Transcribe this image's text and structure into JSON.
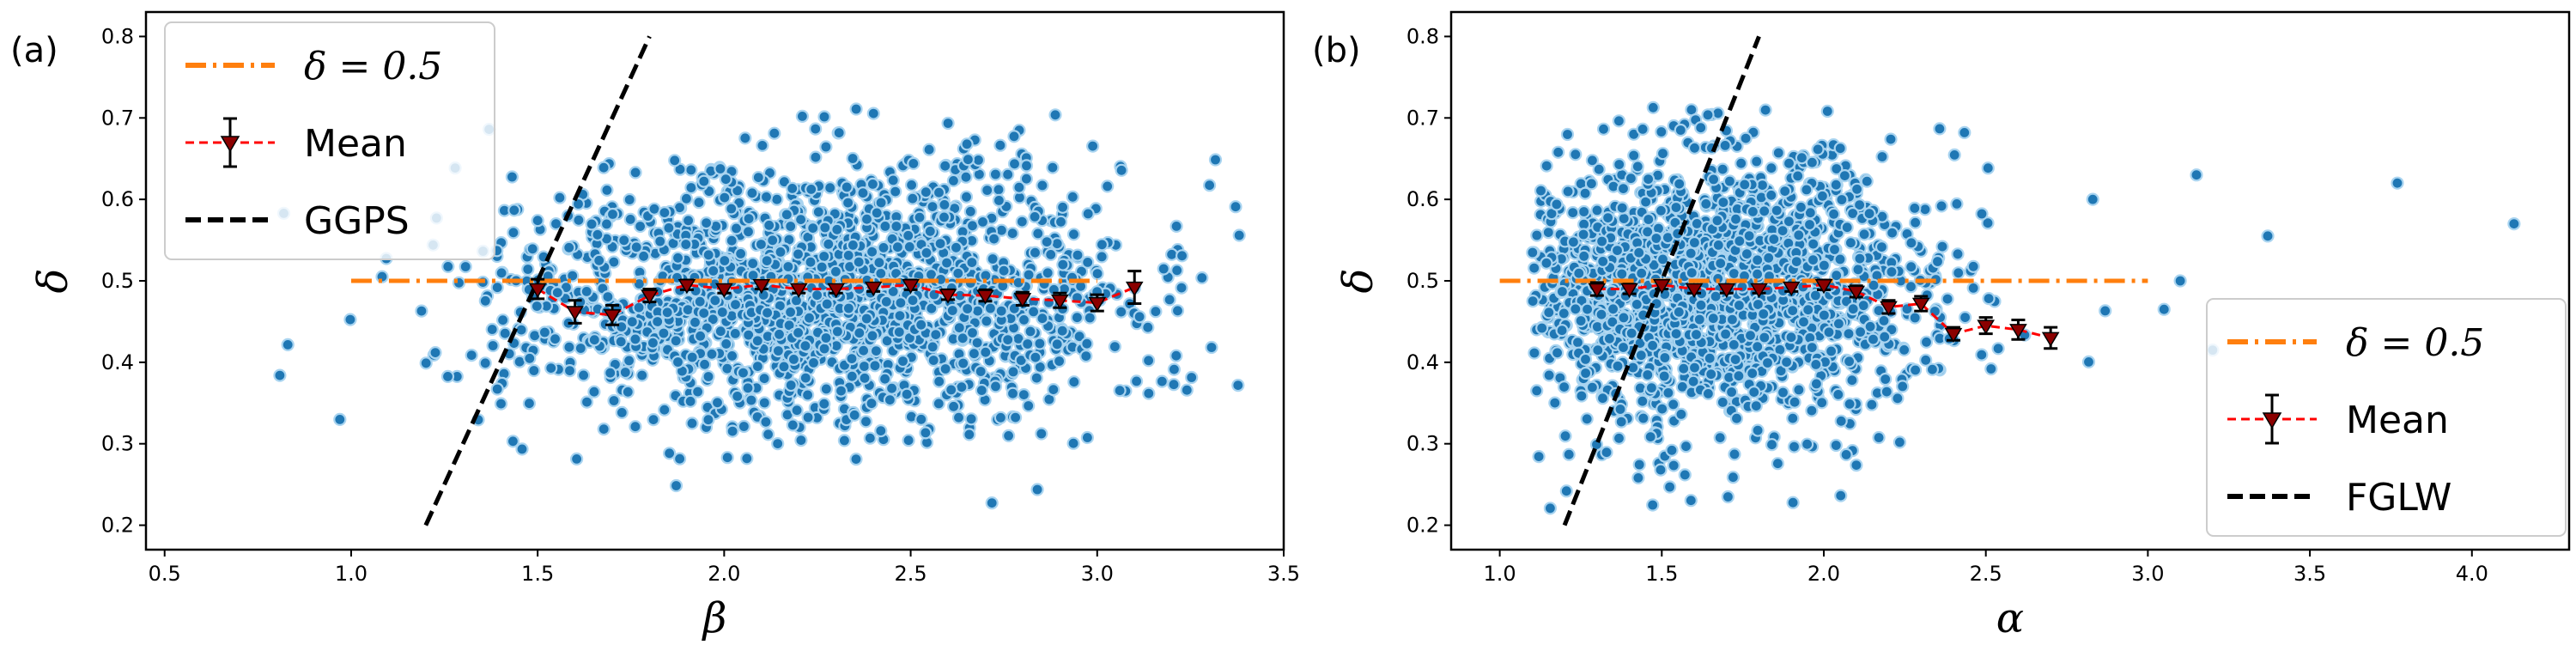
{
  "colors": {
    "scatter_fill": "#1f77b4",
    "scatter_edge": "#a9d4f0",
    "reference_line": "#ff7f0e",
    "mean_line": "#ff0000",
    "mean_marker": "#8b0000",
    "fit_line": "#000000",
    "axis": "#000000"
  },
  "chart_data": [
    {
      "type": "scatter",
      "panel_label": "(a)",
      "xlabel": "β",
      "ylabel": "δ",
      "xlim": [
        0.45,
        3.5
      ],
      "ylim": [
        0.17,
        0.83
      ],
      "x_ticks": [
        0.5,
        1.0,
        1.5,
        2.0,
        2.5,
        3.0,
        3.5
      ],
      "x_tick_labels": [
        "0.5",
        "1.0",
        "1.5",
        "2.0",
        "2.5",
        "3.0",
        "3.5"
      ],
      "y_ticks": [
        0.2,
        0.3,
        0.4,
        0.5,
        0.6,
        0.7,
        0.8
      ],
      "y_tick_labels": [
        "0.2",
        "0.3",
        "0.4",
        "0.5",
        "0.6",
        "0.7",
        "0.8"
      ],
      "legend": {
        "position": "top-left",
        "entries": [
          "δ = 0.5",
          "Mean",
          "GGPS"
        ]
      },
      "cloud": {
        "n_points": 1800,
        "x_center": 2.25,
        "x_spread": 0.42,
        "x_range": [
          0.6,
          3.4
        ],
        "y_center": 0.48,
        "y_spread": 0.08,
        "y_range": [
          0.21,
          0.72
        ],
        "seed": 17
      },
      "reference_line": {
        "name": "δ = 0.5",
        "x": [
          1.0,
          3.0
        ],
        "y": [
          0.5,
          0.5
        ]
      },
      "fit_line": {
        "name": "GGPS",
        "x": [
          1.2,
          1.8
        ],
        "y": [
          0.2,
          0.8
        ]
      },
      "mean_series": {
        "name": "Mean",
        "x": [
          1.5,
          1.6,
          1.7,
          1.8,
          1.9,
          2.0,
          2.1,
          2.2,
          2.3,
          2.4,
          2.5,
          2.6,
          2.7,
          2.8,
          2.9,
          3.0,
          3.1
        ],
        "y": [
          0.49,
          0.462,
          0.458,
          0.482,
          0.495,
          0.49,
          0.495,
          0.49,
          0.49,
          0.492,
          0.495,
          0.483,
          0.482,
          0.478,
          0.476,
          0.473,
          0.492
        ],
        "err": [
          0.012,
          0.014,
          0.012,
          0.008,
          0.006,
          0.005,
          0.005,
          0.005,
          0.005,
          0.005,
          0.006,
          0.006,
          0.007,
          0.008,
          0.009,
          0.01,
          0.02
        ]
      }
    },
    {
      "type": "scatter",
      "panel_label": "(b)",
      "xlabel": "α",
      "ylabel": "δ",
      "xlim": [
        0.85,
        4.3
      ],
      "ylim": [
        0.17,
        0.83
      ],
      "x_ticks": [
        1.0,
        1.5,
        2.0,
        2.5,
        3.0,
        3.5,
        4.0
      ],
      "x_tick_labels": [
        "1.0",
        "1.5",
        "2.0",
        "2.5",
        "3.0",
        "3.5",
        "4.0"
      ],
      "y_ticks": [
        0.2,
        0.3,
        0.4,
        0.5,
        0.6,
        0.7,
        0.8
      ],
      "y_tick_labels": [
        "0.2",
        "0.3",
        "0.4",
        "0.5",
        "0.6",
        "0.7",
        "0.8"
      ],
      "legend": {
        "position": "bottom-right",
        "entries": [
          "δ = 0.5",
          "Mean",
          "FGLW"
        ]
      },
      "cloud": {
        "n_points": 1800,
        "x_center": 1.65,
        "x_spread": 0.33,
        "x_range": [
          1.1,
          3.1
        ],
        "y_center": 0.49,
        "y_spread": 0.085,
        "y_range": [
          0.21,
          0.72
        ],
        "seed": 29
      },
      "reference_line": {
        "name": "δ = 0.5",
        "x": [
          1.0,
          3.0
        ],
        "y": [
          0.5,
          0.5
        ]
      },
      "fit_line": {
        "name": "FGLW",
        "x": [
          1.2,
          1.8
        ],
        "y": [
          0.2,
          0.8
        ]
      },
      "mean_series": {
        "name": "Mean",
        "x": [
          1.3,
          1.4,
          1.5,
          1.6,
          1.7,
          1.8,
          1.9,
          2.0,
          2.1,
          2.2,
          2.3,
          2.4,
          2.5,
          2.6,
          2.7
        ],
        "y": [
          0.49,
          0.49,
          0.495,
          0.49,
          0.49,
          0.49,
          0.492,
          0.495,
          0.487,
          0.468,
          0.472,
          0.435,
          0.445,
          0.44,
          0.43
        ],
        "err": [
          0.008,
          0.006,
          0.005,
          0.005,
          0.005,
          0.005,
          0.005,
          0.006,
          0.007,
          0.008,
          0.009,
          0.008,
          0.01,
          0.012,
          0.013
        ]
      },
      "outliers": [
        {
          "x": 3.15,
          "y": 0.63
        },
        {
          "x": 3.1,
          "y": 0.5
        },
        {
          "x": 3.05,
          "y": 0.465
        },
        {
          "x": 3.2,
          "y": 0.415
        },
        {
          "x": 3.37,
          "y": 0.555
        },
        {
          "x": 3.77,
          "y": 0.62
        },
        {
          "x": 4.13,
          "y": 0.57
        },
        {
          "x": 2.83,
          "y": 0.6
        }
      ]
    }
  ]
}
